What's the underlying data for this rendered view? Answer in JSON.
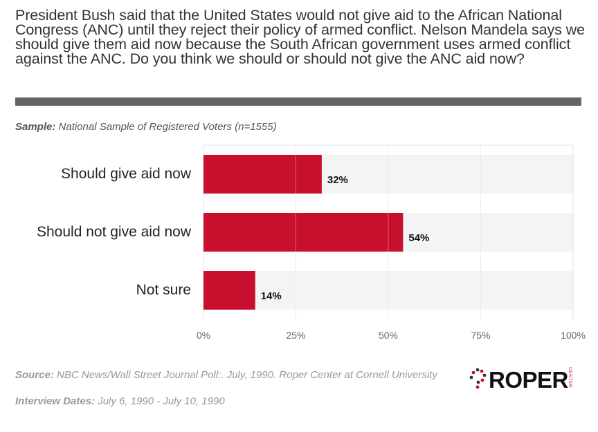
{
  "question": "President Bush said that the United States would not give aid to the African National Congress (ANC) until they reject their policy of armed conflict. Nelson Mandela says we should give them aid now because the South African government uses armed conflict against the ANC. Do you think we should or should not give the ANC aid now?",
  "sample": {
    "label": "Sample:",
    "text": "National Sample of Registered Voters (n=1555)"
  },
  "source": {
    "label": "Source:",
    "text": "NBC News/Wall Street Journal Poll:. July, 1990. Roper Center at Cornell University"
  },
  "dates": {
    "label": "Interview Dates:",
    "text": "July 6, 1990 - July 10, 1990"
  },
  "logo": {
    "text": "ROPER",
    "side_text": "CENTER"
  },
  "colors": {
    "bar": "#c8102e",
    "band": "#f4f4f4",
    "grid": "#d9e3ef",
    "divider": "#646464"
  },
  "chart_data": {
    "type": "bar",
    "orientation": "horizontal",
    "categories": [
      "Should give aid now",
      "Should not give aid now",
      "Not sure"
    ],
    "values": [
      32,
      54,
      14
    ],
    "value_labels": [
      "32%",
      "54%",
      "14%"
    ],
    "xlim": [
      0,
      100
    ],
    "xticks": [
      0,
      25,
      50,
      75,
      100
    ],
    "xtick_labels": [
      "0%",
      "25%",
      "50%",
      "75%",
      "100%"
    ],
    "grid": true
  }
}
